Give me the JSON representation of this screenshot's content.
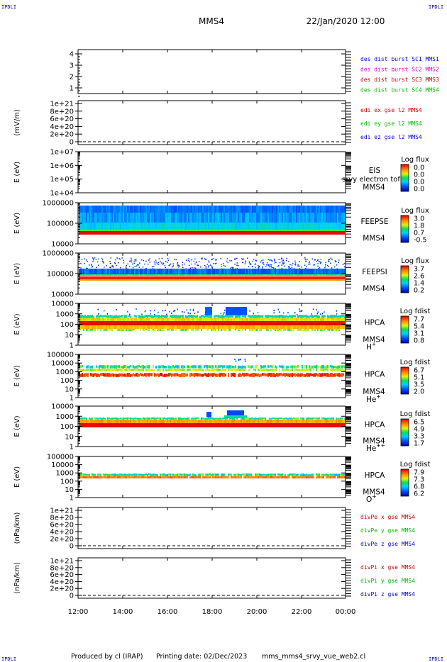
{
  "header": {
    "corner": "IPDLI",
    "spacecraft": "MMS4",
    "datetime": "22/Jan/2020 12:00"
  },
  "footer": {
    "produced": "Produced by cl (IRAP)",
    "printing": "Printing date: 02/Dec/2023",
    "file": "mms_mms4_srvy_vue_web2.cl"
  },
  "time_axis": {
    "ticks": [
      "12:00",
      "14:00",
      "16:00",
      "18:00",
      "20:00",
      "22:00",
      "00:00"
    ]
  },
  "chart_data": [
    {
      "type": "line",
      "id": "p1",
      "ylabel": "",
      "ylim": [
        0.5,
        4.3
      ],
      "yticks": [
        "4",
        "3",
        "2",
        "1"
      ],
      "legend": [
        {
          "text": "des dist burst SC1 MMS1",
          "color": "#0000cc"
        },
        {
          "text": "des dist burst SC2 MMS2",
          "color": "#cc00cc"
        },
        {
          "text": "des dist burst SC3 MMS3",
          "color": "#cc0000"
        },
        {
          "text": "des dist burst SC4 MMS4",
          "color": "#00bb00"
        }
      ]
    },
    {
      "type": "line",
      "id": "p2",
      "ylabel": "(mV/m)",
      "yticks": [
        "1e+21",
        "8e+20",
        "6e+20",
        "4e+20",
        "2e+20",
        "0"
      ],
      "legend": [
        {
          "text": "edi ex gse l2 MMS4",
          "color": "#cc0000"
        },
        {
          "text": "edi ey gse l2 MMS4",
          "color": "#00bb00"
        },
        {
          "text": "edi ez gse l2 MMS4",
          "color": "#0000cc"
        }
      ]
    },
    {
      "type": "heatmap",
      "id": "p3",
      "ylabel": "E (eV)",
      "yticks": [
        "1e+07",
        "1e+06",
        "1e+05",
        "1e+04"
      ],
      "instrument": [
        "EIS",
        "MMS4"
      ],
      "overlap_text": "srvy electron tof",
      "colorbar": {
        "title": "Log flux",
        "ticks": [
          "0.0",
          "0.0",
          "0.0",
          "0.0"
        ]
      }
    },
    {
      "type": "heatmap",
      "id": "p4",
      "ylabel": "E (eV)",
      "yticks": [
        "1000000",
        "100000",
        "10000"
      ],
      "instrument": [
        "FEEPSE",
        "MMS4"
      ],
      "colorbar": {
        "title": "Log flux",
        "ticks": [
          "3.0",
          "1.8",
          "0.7",
          "-0.5"
        ]
      }
    },
    {
      "type": "heatmap",
      "id": "p5",
      "ylabel": "E (eV)",
      "yticks": [
        "1000000",
        "100000",
        "10000"
      ],
      "instrument": [
        "FEEPSI",
        "MMS4"
      ],
      "colorbar": {
        "title": "Log flux",
        "ticks": [
          "3.7",
          "2.6",
          "1.4",
          "0.2"
        ]
      }
    },
    {
      "type": "heatmap",
      "id": "p6",
      "ylabel": "E (eV)",
      "yticks": [
        "10000",
        "1000",
        "100",
        "10",
        "1"
      ],
      "instrument": [
        "HPCA",
        "MMS4"
      ],
      "species": "H",
      "species_sup": "+",
      "colorbar": {
        "title": "Log fdist",
        "ticks": [
          "7.7",
          "5.4",
          "3.1",
          "0.8"
        ]
      }
    },
    {
      "type": "heatmap",
      "id": "p7",
      "ylabel": "E (eV)",
      "yticks": [
        "100000",
        "10000",
        "1000",
        "100",
        "10",
        "1"
      ],
      "instrument": [
        "HPCA",
        "MMS4"
      ],
      "species": "He",
      "species_sup": "+",
      "colorbar": {
        "title": "Log fdist",
        "ticks": [
          "6.7",
          "5.1",
          "3.5",
          "2.0"
        ]
      }
    },
    {
      "type": "heatmap",
      "id": "p8",
      "ylabel": "E (eV)",
      "yticks": [
        "10000",
        "1000",
        "100",
        "10",
        "1"
      ],
      "instrument": [
        "HPCA",
        "MMS4"
      ],
      "species": "He",
      "species_sup": "++",
      "colorbar": {
        "title": "Log fdist",
        "ticks": [
          "6.5",
          "4.9",
          "3.3",
          "1.7"
        ]
      }
    },
    {
      "type": "heatmap",
      "id": "p9",
      "ylabel": "E (eV)",
      "yticks": [
        "100000",
        "10000",
        "1000",
        "100",
        "10",
        "1"
      ],
      "instrument": [
        "HPCA",
        "MMS4"
      ],
      "species": "O",
      "species_sup": "+",
      "colorbar": {
        "title": "Log fdist",
        "ticks": [
          "7.9",
          "7.3",
          "6.8",
          "6.2"
        ]
      }
    },
    {
      "type": "line",
      "id": "p10",
      "ylabel": "(nPa/km)",
      "yticks": [
        "1e+21",
        "8e+20",
        "6e+20",
        "4e+20",
        "2e+20",
        "0"
      ],
      "legend": [
        {
          "text": "divPe x gse MMS4",
          "color": "#cc0000"
        },
        {
          "text": "divPe y gse MMS4",
          "color": "#00bb00"
        },
        {
          "text": "divPe z gse MMS4",
          "color": "#0000cc"
        }
      ]
    },
    {
      "type": "line",
      "id": "p11",
      "ylabel": "(nPa/km)",
      "yticks": [
        "1e+21",
        "8e+20",
        "6e+20",
        "4e+20",
        "2e+20",
        "0"
      ],
      "legend": [
        {
          "text": "divPi x gse MMS4",
          "color": "#cc0000"
        },
        {
          "text": "divPi y gse MMS4",
          "color": "#00bb00"
        },
        {
          "text": "divPi z gse MMS4",
          "color": "#0000cc"
        }
      ]
    }
  ]
}
